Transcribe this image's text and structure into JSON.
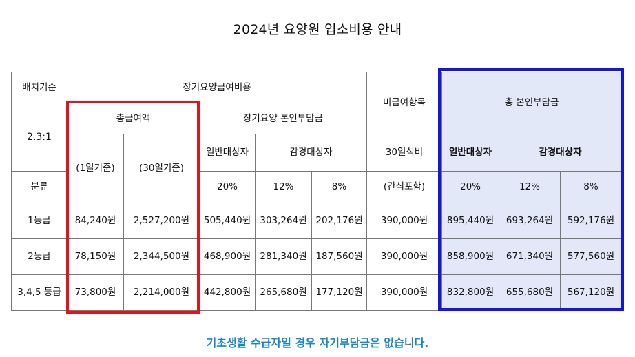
{
  "title": "2024년 요양원 입소비용 안내",
  "table": {
    "h_placement": "배치기준",
    "h_ltc_total": "장기요양급여비용",
    "h_nonbenefit": "비급여항목",
    "h_total_self": "총 본인부담금",
    "ratio": "2.3:1",
    "h_total_benefit": "총급여액",
    "h_ltc_self": "장기요양 본인부담금",
    "h_per_day": "(1일기준)",
    "h_30days": "(30일기준)",
    "h_general": "일반대상자",
    "h_reduced": "감경대상자",
    "h_meal30": "30일식비",
    "h_general_blue": "일반대상자",
    "h_reduced_blue": "감경대상자",
    "h_class": "분류",
    "h_rate20": "20%",
    "h_rate12": "12%",
    "h_rate8": "8%",
    "h_snack": "(간식포함)",
    "h_rate20_blue": "20%",
    "h_rate12_blue": "12%",
    "h_rate8_blue": "8%",
    "rows": [
      {
        "grade": "1등급",
        "daily": "84,240원",
        "monthly": "2,527,200원",
        "s20": "505,440원",
        "s12": "303,264원",
        "s8": "202,176원",
        "meal": "390,000원",
        "t20": "895,440원",
        "t12": "693,264원",
        "t8": "592,176원"
      },
      {
        "grade": "2등급",
        "daily": "78,150원",
        "monthly": "2,344,500원",
        "s20": "468,900원",
        "s12": "281,340원",
        "s8": "187,560원",
        "meal": "390,000원",
        "t20": "858,900원",
        "t12": "671,340원",
        "t8": "577,560원"
      },
      {
        "grade": "3,4,5 등급",
        "daily": "73,800원",
        "monthly": "2,214,000원",
        "s20": "442,800원",
        "s12": "265,680원",
        "s8": "177,120원",
        "meal": "390,000원",
        "t20": "832,800원",
        "t12": "655,680원",
        "t8": "567,120원"
      }
    ]
  },
  "footer": "기초생활 수급자일 경우 자기부담금은 없습니다.",
  "colors": {
    "highlight_red": "#e0141c",
    "highlight_blue": "#1414e8",
    "blue_fill": "#e3e8f8",
    "footer_text": "#1a86c8"
  }
}
